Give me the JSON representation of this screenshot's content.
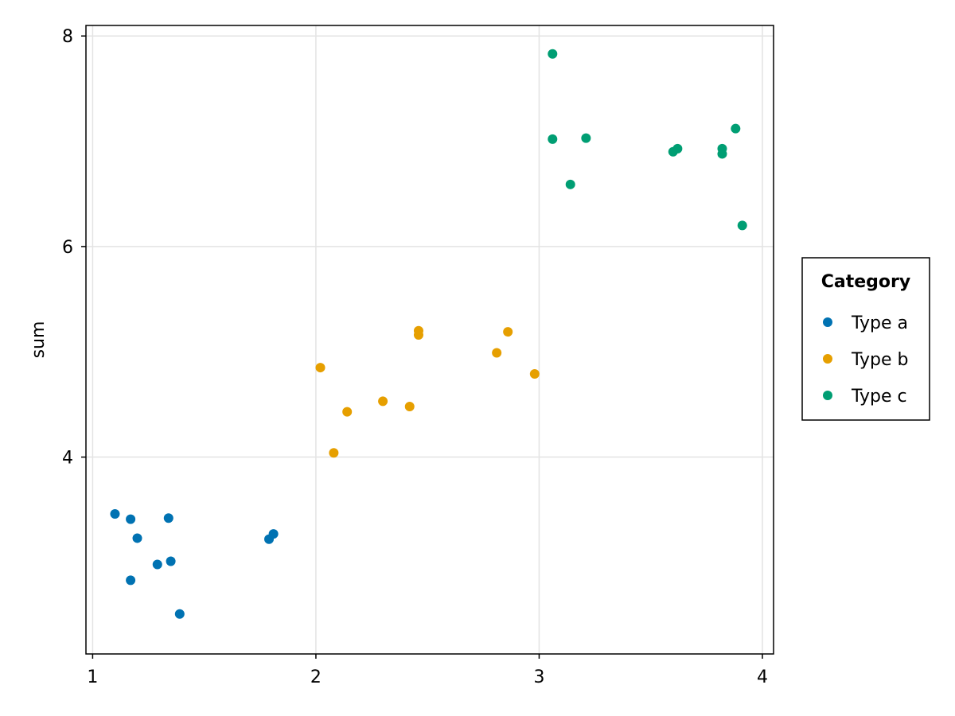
{
  "chart_data": {
    "type": "scatter",
    "title": "",
    "xlabel": "",
    "ylabel": "sum",
    "xlim": [
      0.97,
      4.05
    ],
    "ylim": [
      2.13,
      8.1
    ],
    "xticks": [
      1,
      2,
      3,
      4
    ],
    "yticks": [
      4,
      6,
      8
    ],
    "grid": true,
    "legend": {
      "title": "Category",
      "position": "right"
    },
    "series": [
      {
        "name": "Type a",
        "color": "#0072b2",
        "points": [
          {
            "x": 1.1,
            "y": 3.46
          },
          {
            "x": 1.17,
            "y": 3.41
          },
          {
            "x": 1.2,
            "y": 3.23
          },
          {
            "x": 1.34,
            "y": 3.42
          },
          {
            "x": 1.29,
            "y": 2.98
          },
          {
            "x": 1.35,
            "y": 3.01
          },
          {
            "x": 1.17,
            "y": 2.83
          },
          {
            "x": 1.39,
            "y": 2.51
          },
          {
            "x": 1.79,
            "y": 3.22
          },
          {
            "x": 1.81,
            "y": 3.27
          }
        ]
      },
      {
        "name": "Type b",
        "color": "#e69f00",
        "points": [
          {
            "x": 2.02,
            "y": 4.85
          },
          {
            "x": 2.08,
            "y": 4.04
          },
          {
            "x": 2.14,
            "y": 4.43
          },
          {
            "x": 2.3,
            "y": 4.53
          },
          {
            "x": 2.42,
            "y": 4.48
          },
          {
            "x": 2.46,
            "y": 5.2
          },
          {
            "x": 2.46,
            "y": 5.16
          },
          {
            "x": 2.81,
            "y": 4.99
          },
          {
            "x": 2.86,
            "y": 5.19
          },
          {
            "x": 2.98,
            "y": 4.79
          }
        ]
      },
      {
        "name": "Type c",
        "color": "#009e73",
        "points": [
          {
            "x": 3.06,
            "y": 7.83
          },
          {
            "x": 3.06,
            "y": 7.02
          },
          {
            "x": 3.14,
            "y": 6.59
          },
          {
            "x": 3.21,
            "y": 7.03
          },
          {
            "x": 3.6,
            "y": 6.9
          },
          {
            "x": 3.62,
            "y": 6.93
          },
          {
            "x": 3.82,
            "y": 6.93
          },
          {
            "x": 3.82,
            "y": 6.88
          },
          {
            "x": 3.88,
            "y": 7.12
          },
          {
            "x": 3.91,
            "y": 6.2
          }
        ]
      }
    ]
  }
}
